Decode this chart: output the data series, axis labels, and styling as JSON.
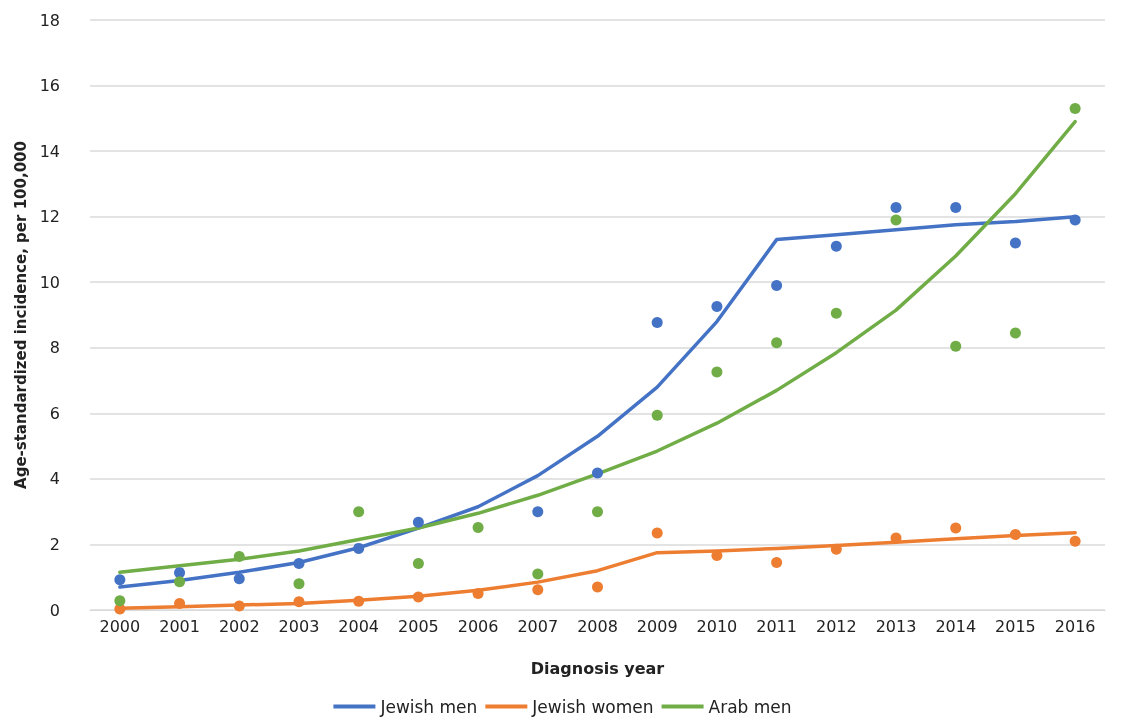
{
  "chart_data": {
    "type": "line",
    "xlabel": "Diagnosis year",
    "ylabel": "Age-standardized incidence, per 100,000",
    "categories": [
      "2000",
      "2001",
      "2002",
      "2003",
      "2004",
      "2005",
      "2006",
      "2007",
      "2008",
      "2009",
      "2010",
      "2011",
      "2012",
      "2013",
      "2014",
      "2015",
      "2016"
    ],
    "ylim": [
      0,
      18
    ],
    "yticks": [
      0,
      2,
      4,
      6,
      8,
      10,
      12,
      14,
      16,
      18
    ],
    "grid": "y",
    "legend": "bottom",
    "series": [
      {
        "name": "Jewish men",
        "marker": "none",
        "color": "#4472c4",
        "values": [
          0.7,
          0.9,
          1.15,
          1.45,
          1.9,
          2.5,
          3.15,
          4.1,
          5.3,
          6.8,
          8.8,
          11.3,
          11.45,
          11.6,
          11.75,
          11.85,
          12.0
        ]
      },
      {
        "name": "Jewish women",
        "marker": "none",
        "color": "#ed7d31",
        "values": [
          0.05,
          0.1,
          0.15,
          0.2,
          0.3,
          0.42,
          0.6,
          0.85,
          1.2,
          1.75,
          1.8,
          1.88,
          1.97,
          2.07,
          2.17,
          2.27,
          2.36
        ]
      },
      {
        "name": "Arab men",
        "marker": "none",
        "color": "#70ad47",
        "values": [
          1.15,
          1.35,
          1.55,
          1.8,
          2.15,
          2.5,
          2.95,
          3.5,
          4.15,
          4.85,
          5.7,
          6.7,
          7.85,
          9.15,
          10.8,
          12.7,
          14.9
        ]
      },
      {
        "type": "scatter",
        "marker": "circle",
        "color": "#4472c4",
        "values": [
          0.92,
          1.14,
          0.95,
          1.42,
          1.88,
          2.68,
          null,
          3.0,
          4.18,
          8.77,
          9.26,
          9.9,
          11.1,
          12.28,
          12.28,
          11.2,
          11.9
        ]
      },
      {
        "type": "scatter",
        "marker": "circle",
        "color": "#ed7d31",
        "values": [
          0.03,
          0.2,
          0.12,
          0.25,
          0.27,
          0.4,
          0.5,
          0.62,
          0.7,
          2.35,
          1.66,
          1.45,
          1.85,
          2.2,
          2.5,
          2.3,
          2.1
        ]
      },
      {
        "type": "scatter",
        "marker": "circle",
        "color": "#70ad47",
        "values": [
          0.28,
          0.86,
          1.63,
          0.8,
          3.0,
          1.42,
          2.52,
          1.1,
          3.0,
          5.94,
          7.26,
          8.15,
          9.05,
          11.9,
          8.05,
          8.45,
          15.3
        ]
      }
    ]
  }
}
